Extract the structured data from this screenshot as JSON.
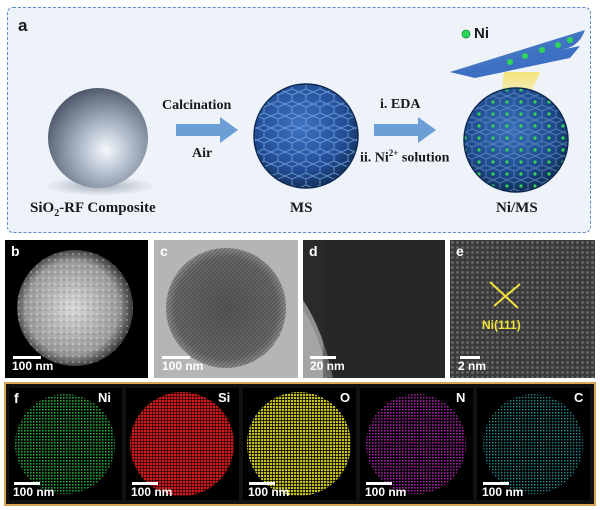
{
  "panel_a": {
    "letter": "a",
    "step1_top": "Calcination",
    "step1_bottom": "Air",
    "step2_top": "i. EDA",
    "step2_bottom_prefix": "ii. Ni",
    "step2_bottom_sup": "2+",
    "step2_bottom_suffix": " solution",
    "label_composite_prefix": "SiO",
    "label_composite_sub": "2",
    "label_composite_suffix": "-RF Composite",
    "label_ms": "MS",
    "label_nims": "Ni/MS",
    "legend_ni": "Ni",
    "colors": {
      "ni_dot": "#2fd45a",
      "arrow": "#6b9fd6",
      "sphere_blue": "#2a5aa8",
      "frame": "#5f8cc8"
    }
  },
  "micro_row": [
    {
      "letter": "b",
      "scale": "100 nm"
    },
    {
      "letter": "c",
      "scale": "100 nm"
    },
    {
      "letter": "d",
      "scale": "20 nm"
    },
    {
      "letter": "e",
      "scale": "2 nm",
      "annotation": "Ni(111)"
    }
  ],
  "eds_row": {
    "letter": "f",
    "maps": [
      {
        "element": "Ni",
        "scale": "100 nm",
        "color": "#22a83a"
      },
      {
        "element": "Si",
        "scale": "100 nm",
        "color": "#d31a1a"
      },
      {
        "element": "O",
        "scale": "100 nm",
        "color": "#c9c21c"
      },
      {
        "element": "N",
        "scale": "100 nm",
        "color": "#a321a6"
      },
      {
        "element": "C",
        "scale": "100 nm",
        "color": "#1f8f92"
      }
    ]
  }
}
